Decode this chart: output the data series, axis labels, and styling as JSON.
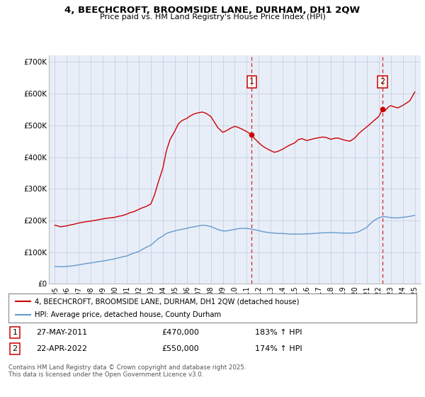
{
  "title": "4, BEECHCROFT, BROOMSIDE LANE, DURHAM, DH1 2QW",
  "subtitle": "Price paid vs. HM Land Registry's House Price Index (HPI)",
  "bg_color": "#e8eef8",
  "grid_color": "#c8d0e0",
  "ylim": [
    0,
    720000
  ],
  "yticks": [
    0,
    100000,
    200000,
    300000,
    400000,
    500000,
    600000,
    700000
  ],
  "ytick_labels": [
    "£0",
    "£100K",
    "£200K",
    "£300K",
    "£400K",
    "£500K",
    "£600K",
    "£700K"
  ],
  "xlim_start": 1994.5,
  "xlim_end": 2025.5,
  "xticks": [
    1995,
    1996,
    1997,
    1998,
    1999,
    2000,
    2001,
    2002,
    2003,
    2004,
    2005,
    2006,
    2007,
    2008,
    2009,
    2010,
    2011,
    2012,
    2013,
    2014,
    2015,
    2016,
    2017,
    2018,
    2019,
    2020,
    2021,
    2022,
    2023,
    2024,
    2025
  ],
  "red_line_color": "#cc0000",
  "blue_line_color": "#6699cc",
  "vline_color": "#cc0000",
  "sale1_x": 2011.41,
  "sale1_y": 470000,
  "sale2_x": 2022.31,
  "sale2_y": 550000,
  "legend_label_red": "4, BEECHCROFT, BROOMSIDE LANE, DURHAM, DH1 2QW (detached house)",
  "legend_label_blue": "HPI: Average price, detached house, County Durham",
  "table_row1": [
    "1",
    "27-MAY-2011",
    "£470,000",
    "183% ↑ HPI"
  ],
  "table_row2": [
    "2",
    "22-APR-2022",
    "£550,000",
    "174% ↑ HPI"
  ],
  "footer": "Contains HM Land Registry data © Crown copyright and database right 2025.\nThis data is licensed under the Open Government Licence v3.0.",
  "red_data": [
    [
      1995.0,
      185000
    ],
    [
      1995.2,
      183000
    ],
    [
      1995.5,
      180000
    ],
    [
      1995.8,
      182000
    ],
    [
      1996.0,
      183000
    ],
    [
      1996.3,
      186000
    ],
    [
      1996.6,
      188000
    ],
    [
      1997.0,
      192000
    ],
    [
      1997.3,
      194000
    ],
    [
      1997.6,
      196000
    ],
    [
      1998.0,
      198000
    ],
    [
      1998.3,
      200000
    ],
    [
      1998.6,
      202000
    ],
    [
      1999.0,
      205000
    ],
    [
      1999.3,
      207000
    ],
    [
      1999.6,
      208000
    ],
    [
      2000.0,
      210000
    ],
    [
      2000.3,
      213000
    ],
    [
      2000.6,
      215000
    ],
    [
      2001.0,
      220000
    ],
    [
      2001.3,
      225000
    ],
    [
      2001.6,
      228000
    ],
    [
      2002.0,
      235000
    ],
    [
      2002.3,
      240000
    ],
    [
      2002.6,
      244000
    ],
    [
      2003.0,
      252000
    ],
    [
      2003.3,
      280000
    ],
    [
      2003.6,
      318000
    ],
    [
      2004.0,
      365000
    ],
    [
      2004.3,
      420000
    ],
    [
      2004.6,
      455000
    ],
    [
      2005.0,
      482000
    ],
    [
      2005.3,
      505000
    ],
    [
      2005.6,
      515000
    ],
    [
      2006.0,
      522000
    ],
    [
      2006.3,
      530000
    ],
    [
      2006.6,
      536000
    ],
    [
      2007.0,
      540000
    ],
    [
      2007.3,
      542000
    ],
    [
      2007.6,
      538000
    ],
    [
      2008.0,
      528000
    ],
    [
      2008.3,
      510000
    ],
    [
      2008.6,
      492000
    ],
    [
      2009.0,
      478000
    ],
    [
      2009.3,
      483000
    ],
    [
      2009.6,
      490000
    ],
    [
      2010.0,
      497000
    ],
    [
      2010.3,
      493000
    ],
    [
      2010.6,
      488000
    ],
    [
      2011.0,
      480000
    ],
    [
      2011.41,
      470000
    ],
    [
      2011.6,
      460000
    ],
    [
      2012.0,
      445000
    ],
    [
      2012.3,
      435000
    ],
    [
      2012.6,
      428000
    ],
    [
      2013.0,
      420000
    ],
    [
      2013.3,
      415000
    ],
    [
      2013.6,
      418000
    ],
    [
      2014.0,
      425000
    ],
    [
      2014.3,
      432000
    ],
    [
      2014.6,
      438000
    ],
    [
      2015.0,
      445000
    ],
    [
      2015.3,
      455000
    ],
    [
      2015.6,
      458000
    ],
    [
      2016.0,
      452000
    ],
    [
      2016.3,
      455000
    ],
    [
      2016.6,
      458000
    ],
    [
      2017.0,
      461000
    ],
    [
      2017.3,
      463000
    ],
    [
      2017.6,
      462000
    ],
    [
      2018.0,
      456000
    ],
    [
      2018.3,
      459000
    ],
    [
      2018.6,
      460000
    ],
    [
      2019.0,
      455000
    ],
    [
      2019.3,
      452000
    ],
    [
      2019.6,
      450000
    ],
    [
      2020.0,
      460000
    ],
    [
      2020.3,
      473000
    ],
    [
      2020.6,
      483000
    ],
    [
      2021.0,
      495000
    ],
    [
      2021.3,
      505000
    ],
    [
      2021.6,
      515000
    ],
    [
      2022.0,
      528000
    ],
    [
      2022.31,
      550000
    ],
    [
      2022.5,
      545000
    ],
    [
      2022.8,
      558000
    ],
    [
      2023.0,
      562000
    ],
    [
      2023.3,
      558000
    ],
    [
      2023.6,
      555000
    ],
    [
      2024.0,
      563000
    ],
    [
      2024.3,
      570000
    ],
    [
      2024.6,
      578000
    ],
    [
      2025.0,
      605000
    ]
  ],
  "blue_data": [
    [
      1995.0,
      55000
    ],
    [
      1995.3,
      54500
    ],
    [
      1995.6,
      54000
    ],
    [
      1996.0,
      55000
    ],
    [
      1996.3,
      56000
    ],
    [
      1996.6,
      57500
    ],
    [
      1997.0,
      60000
    ],
    [
      1997.3,
      62000
    ],
    [
      1997.6,
      64000
    ],
    [
      1998.0,
      66000
    ],
    [
      1998.3,
      68000
    ],
    [
      1998.6,
      70000
    ],
    [
      1999.0,
      72000
    ],
    [
      1999.3,
      74000
    ],
    [
      1999.6,
      76000
    ],
    [
      2000.0,
      79000
    ],
    [
      2000.3,
      82000
    ],
    [
      2000.6,
      85000
    ],
    [
      2001.0,
      88000
    ],
    [
      2001.3,
      93000
    ],
    [
      2001.6,
      97000
    ],
    [
      2002.0,
      102000
    ],
    [
      2002.3,
      109000
    ],
    [
      2002.6,
      115000
    ],
    [
      2003.0,
      122000
    ],
    [
      2003.3,
      132000
    ],
    [
      2003.6,
      142000
    ],
    [
      2004.0,
      151000
    ],
    [
      2004.3,
      159000
    ],
    [
      2004.6,
      163000
    ],
    [
      2005.0,
      167000
    ],
    [
      2005.3,
      170000
    ],
    [
      2005.6,
      172000
    ],
    [
      2006.0,
      175000
    ],
    [
      2006.3,
      178000
    ],
    [
      2006.6,
      180000
    ],
    [
      2007.0,
      183000
    ],
    [
      2007.3,
      185000
    ],
    [
      2007.6,
      184000
    ],
    [
      2008.0,
      181000
    ],
    [
      2008.3,
      176000
    ],
    [
      2008.6,
      171000
    ],
    [
      2009.0,
      167000
    ],
    [
      2009.3,
      167000
    ],
    [
      2009.6,
      169000
    ],
    [
      2010.0,
      172000
    ],
    [
      2010.3,
      174000
    ],
    [
      2010.6,
      175000
    ],
    [
      2011.0,
      175000
    ],
    [
      2011.3,
      173000
    ],
    [
      2011.6,
      171000
    ],
    [
      2012.0,
      168000
    ],
    [
      2012.3,
      165000
    ],
    [
      2012.6,
      163000
    ],
    [
      2013.0,
      161000
    ],
    [
      2013.3,
      160000
    ],
    [
      2013.6,
      159000
    ],
    [
      2014.0,
      159000
    ],
    [
      2014.3,
      158000
    ],
    [
      2014.6,
      157000
    ],
    [
      2015.0,
      157000
    ],
    [
      2015.3,
      157000
    ],
    [
      2015.6,
      157000
    ],
    [
      2016.0,
      158000
    ],
    [
      2016.3,
      158000
    ],
    [
      2016.6,
      159000
    ],
    [
      2017.0,
      160000
    ],
    [
      2017.3,
      161000
    ],
    [
      2017.6,
      161000
    ],
    [
      2018.0,
      162000
    ],
    [
      2018.3,
      161000
    ],
    [
      2018.6,
      161000
    ],
    [
      2019.0,
      160000
    ],
    [
      2019.3,
      160000
    ],
    [
      2019.6,
      160000
    ],
    [
      2020.0,
      161000
    ],
    [
      2020.3,
      164000
    ],
    [
      2020.6,
      170000
    ],
    [
      2021.0,
      178000
    ],
    [
      2021.3,
      190000
    ],
    [
      2021.6,
      200000
    ],
    [
      2022.0,
      208000
    ],
    [
      2022.31,
      212000
    ],
    [
      2022.5,
      212000
    ],
    [
      2022.8,
      210000
    ],
    [
      2023.0,
      209000
    ],
    [
      2023.3,
      208000
    ],
    [
      2023.6,
      208000
    ],
    [
      2024.0,
      210000
    ],
    [
      2024.3,
      211000
    ],
    [
      2024.6,
      213000
    ],
    [
      2025.0,
      216000
    ]
  ]
}
